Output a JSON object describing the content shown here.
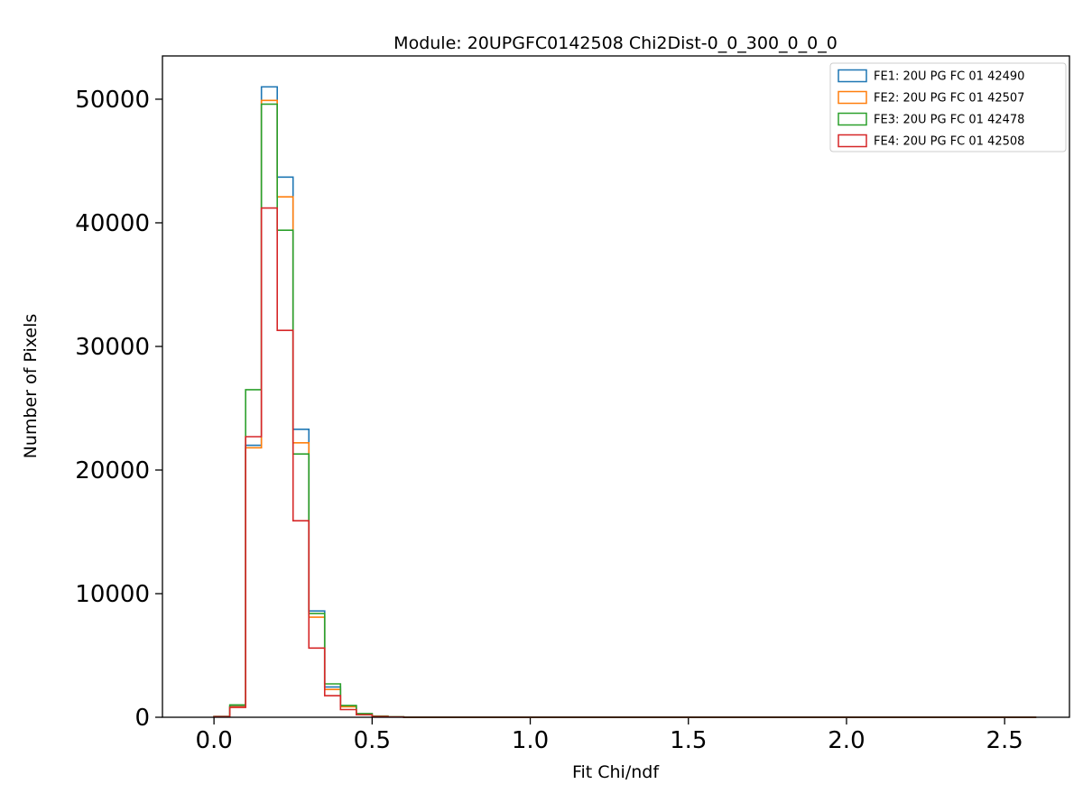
{
  "title": "Module: 20UPGFC0142508 Chi2Dist-0_0_300_0_0_0",
  "chart_data": {
    "type": "histogram-step",
    "title": "Module: 20UPGFC0142508 Chi2Dist-0_0_300_0_0_0",
    "xlabel": "Fit Chi/ndf",
    "ylabel": "Number of Pixels",
    "xlim": [
      -0.163,
      2.705
    ],
    "ylim": [
      0,
      53500
    ],
    "x_ticks": [
      0.0,
      0.5,
      1.0,
      1.5,
      2.0,
      2.5
    ],
    "x_tick_labels": [
      "0.0",
      "0.5",
      "1.0",
      "1.5",
      "2.0",
      "2.5"
    ],
    "y_ticks": [
      0,
      10000,
      20000,
      30000,
      40000,
      50000
    ],
    "y_tick_labels": [
      "0",
      "10000",
      "20000",
      "30000",
      "40000",
      "50000"
    ],
    "grid": false,
    "legend_position": "upper right",
    "bin_edges": [
      0.0,
      0.05,
      0.1,
      0.15,
      0.2,
      0.25,
      0.3,
      0.35,
      0.4,
      0.45,
      0.5,
      0.55,
      0.6
    ],
    "baseline_extends_to": 2.6,
    "series": [
      {
        "name": "FE1: 20U PG FC 01 42490",
        "color": "#1f77b4",
        "values": [
          60,
          900,
          22000,
          51000,
          43700,
          23300,
          8600,
          2450,
          900,
          280,
          90,
          30
        ]
      },
      {
        "name": "FE2: 20U PG FC 01 42507",
        "color": "#ff7f0e",
        "values": [
          50,
          850,
          21800,
          49900,
          42100,
          22200,
          8100,
          2250,
          850,
          260,
          80,
          25
        ]
      },
      {
        "name": "FE3: 20U PG FC 01 42478",
        "color": "#2ca02c",
        "values": [
          70,
          1000,
          26500,
          49600,
          39400,
          21300,
          8400,
          2700,
          950,
          300,
          100,
          35
        ]
      },
      {
        "name": "FE4: 20U PG FC 01 42508",
        "color": "#d62728",
        "values": [
          50,
          800,
          22700,
          41200,
          31300,
          15900,
          5600,
          1750,
          620,
          200,
          60,
          20
        ]
      }
    ]
  }
}
